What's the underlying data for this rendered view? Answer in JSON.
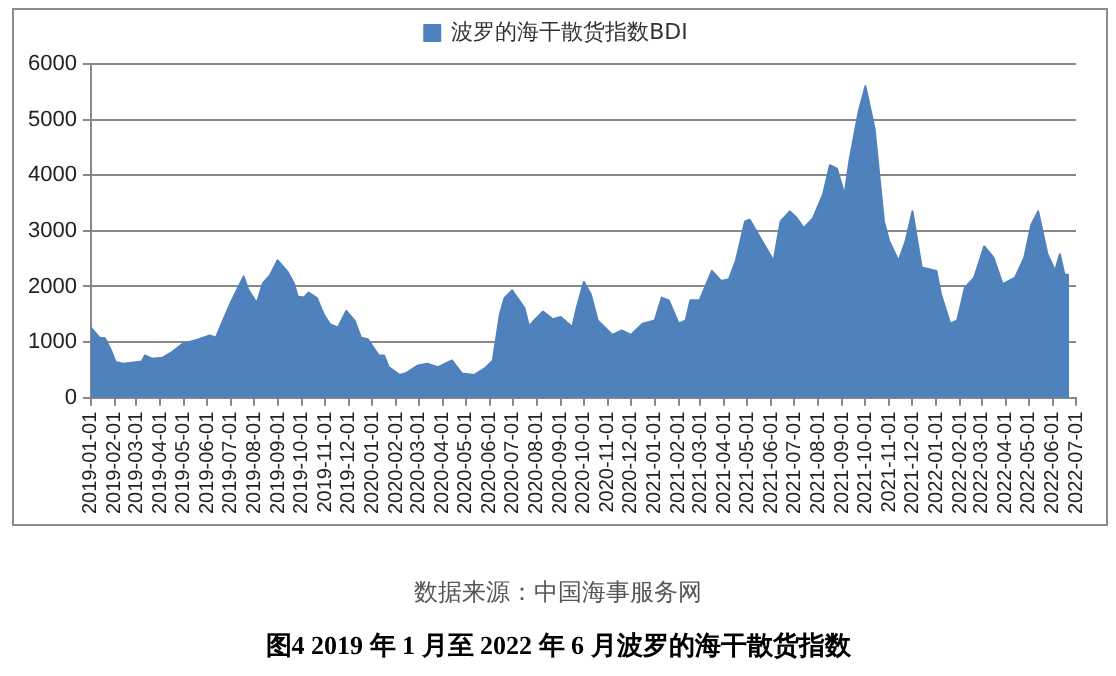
{
  "chart_data": {
    "type": "area",
    "title": "图4   2019 年 1 月至 2022 年 6 月波罗的海干散货指数",
    "annotations": [
      "数据来源：中国海事服务网"
    ],
    "legend": "top",
    "grid": "y",
    "marker": "none",
    "x": [
      "2019-01-01",
      "2019-01-12",
      "2019-01-19",
      "2019-01-27",
      "2019-02-02",
      "2019-02-12",
      "2019-03-08",
      "2019-03-12",
      "2019-03-21",
      "2019-04-04",
      "2019-04-16",
      "2019-04-29",
      "2019-05-21",
      "2019-06-04",
      "2019-06-12",
      "2019-06-21",
      "2019-07-02",
      "2019-07-08",
      "2019-07-18",
      "2019-07-24",
      "2019-08-04",
      "2019-08-12",
      "2019-08-21",
      "2019-08-31",
      "2019-09-13",
      "2019-09-21",
      "2019-09-26",
      "2019-10-04",
      "2019-10-10",
      "2019-10-21",
      "2019-10-30",
      "2019-11-07",
      "2019-11-17",
      "2019-11-28",
      "2019-12-09",
      "2019-12-17",
      "2019-12-26",
      "2020-01-09",
      "2020-01-16",
      "2020-01-22",
      "2020-02-05",
      "2020-02-13",
      "2020-02-29",
      "2020-03-12",
      "2020-03-26",
      "2020-04-13",
      "2020-04-26",
      "2020-05-12",
      "2020-05-26",
      "2020-06-05",
      "2020-06-14",
      "2020-06-20",
      "2020-06-30",
      "2020-07-09",
      "2020-07-16",
      "2020-07-22",
      "2020-07-28",
      "2020-08-09",
      "2020-08-22",
      "2020-09-01",
      "2020-09-16",
      "2020-09-22",
      "2020-10-01",
      "2020-10-10",
      "2020-10-19",
      "2020-11-07",
      "2020-11-19",
      "2020-12-01",
      "2020-12-16",
      "2021-01-01",
      "2021-01-10",
      "2021-01-19",
      "2021-02-01",
      "2021-02-10",
      "2021-02-16",
      "2021-02-28",
      "2021-03-16",
      "2021-03-28",
      "2021-04-07",
      "2021-04-16",
      "2021-04-28",
      "2021-05-04",
      "2021-05-19",
      "2021-06-04",
      "2021-06-13",
      "2021-06-25",
      "2021-07-04",
      "2021-07-13",
      "2021-07-25",
      "2021-08-07",
      "2021-08-16",
      "2021-08-25",
      "2021-09-04",
      "2021-09-10",
      "2021-09-22",
      "2021-10-01",
      "2021-10-13",
      "2021-10-25",
      "2021-11-01",
      "2021-11-13",
      "2021-11-22",
      "2021-12-01",
      "2021-12-13",
      "2022-01-01",
      "2022-01-07",
      "2022-01-19",
      "2022-01-28",
      "2022-02-07",
      "2022-02-19",
      "2022-03-04",
      "2022-03-16",
      "2022-03-28",
      "2022-04-13",
      "2022-04-25",
      "2022-05-04",
      "2022-05-13",
      "2022-05-25",
      "2022-06-04",
      "2022-06-10",
      "2022-06-16",
      "2022-06-22"
    ],
    "series": [
      {
        "name": "波罗的海干散货指数BDI",
        "color": "#4f81bd",
        "values": [
          1260,
          1080,
          1070,
          850,
          640,
          610,
          650,
          760,
          700,
          720,
          820,
          960,
          1050,
          1120,
          1080,
          1380,
          1730,
          1900,
          2180,
          1940,
          1700,
          2060,
          2200,
          2470,
          2260,
          2060,
          1820,
          1800,
          1890,
          1790,
          1490,
          1320,
          1260,
          1560,
          1380,
          1080,
          1050,
          760,
          760,
          550,
          410,
          440,
          580,
          610,
          550,
          670,
          435,
          410,
          530,
          670,
          1490,
          1790,
          1930,
          1750,
          1610,
          1280,
          1380,
          1550,
          1410,
          1450,
          1270,
          1630,
          2080,
          1860,
          1390,
          1130,
          1210,
          1130,
          1330,
          1390,
          1800,
          1750,
          1330,
          1390,
          1750,
          1750,
          2280,
          2100,
          2130,
          2460,
          3170,
          3200,
          2840,
          2460,
          3170,
          3350,
          3230,
          3050,
          3230,
          3650,
          4180,
          4120,
          3650,
          4240,
          5130,
          5600,
          4830,
          3170,
          2810,
          2460,
          2810,
          3350,
          2340,
          2280,
          1860,
          1330,
          1390,
          1980,
          2160,
          2720,
          2520,
          2040,
          2160,
          2520,
          3110,
          3350,
          2580,
          2280,
          2580,
          2220,
          2200
        ]
      }
    ],
    "xlim": [
      "2019-01-01",
      "2022-07-01"
    ],
    "xticks": [
      "2019-01-01",
      "2019-02-01",
      "2019-03-01",
      "2019-04-01",
      "2019-05-01",
      "2019-06-01",
      "2019-07-01",
      "2019-08-01",
      "2019-09-01",
      "2019-10-01",
      "2019-11-01",
      "2019-12-01",
      "2020-01-01",
      "2020-02-01",
      "2020-03-01",
      "2020-04-01",
      "2020-05-01",
      "2020-06-01",
      "2020-07-01",
      "2020-08-01",
      "2020-09-01",
      "2020-10-01",
      "2020-11-01",
      "2020-12-01",
      "2021-01-01",
      "2021-02-01",
      "2021-03-01",
      "2021-04-01",
      "2021-05-01",
      "2021-06-01",
      "2021-07-01",
      "2021-08-01",
      "2021-09-01",
      "2021-10-01",
      "2021-11-01",
      "2021-12-01",
      "2022-01-01",
      "2022-02-01",
      "2022-03-01",
      "2022-04-01",
      "2022-05-01",
      "2022-06-01",
      "2022-07-01"
    ],
    "ylim": [
      0,
      6000
    ],
    "yticks": [
      0,
      1000,
      2000,
      3000,
      4000,
      5000,
      6000
    ]
  }
}
